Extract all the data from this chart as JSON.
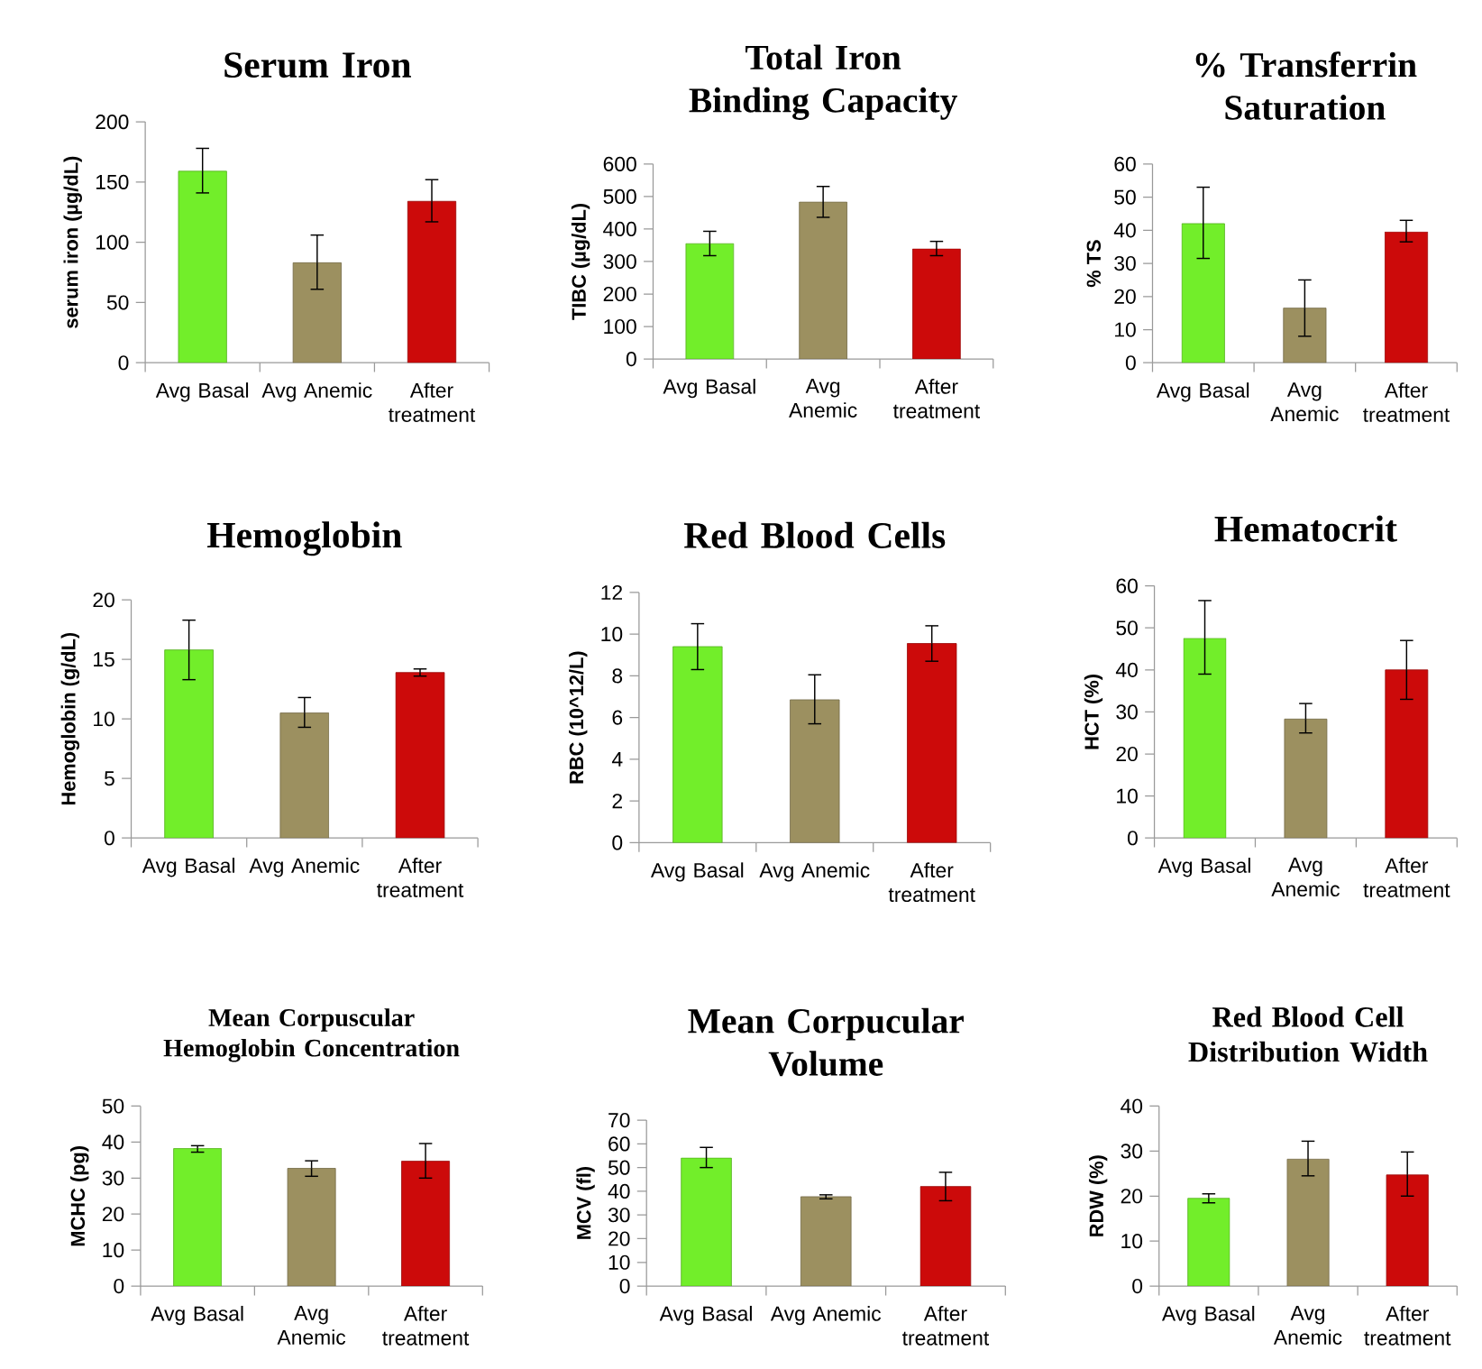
{
  "chart_data": [
    {
      "type": "bar",
      "title": "Serum Iron",
      "ylabel": "serum iron (µg/dL)",
      "categories": [
        "Avg Basal",
        "Avg Anemic",
        "After treatment"
      ],
      "values": [
        159,
        83,
        134
      ],
      "errors": [
        [
          141,
          178
        ],
        [
          61,
          106
        ],
        [
          117,
          152
        ]
      ],
      "colors": [
        "#72ee2a",
        "#9c9060",
        "#cc0a0a"
      ],
      "ylim": [
        0,
        200
      ],
      "yticks": [
        0,
        50,
        100,
        150,
        200
      ]
    },
    {
      "type": "bar",
      "title": "Total Iron Binding Capacity",
      "ylabel": "TIBC (µg/dL)",
      "categories": [
        "Avg Basal",
        "Avg Anemic",
        "After treatment"
      ],
      "values": [
        355,
        483,
        339
      ],
      "errors": [
        [
          318,
          393
        ],
        [
          436,
          531
        ],
        [
          318,
          362
        ]
      ],
      "colors": [
        "#72ee2a",
        "#9c9060",
        "#cc0a0a"
      ],
      "ylim": [
        0,
        600
      ],
      "yticks": [
        0,
        100,
        200,
        300,
        400,
        500,
        600
      ]
    },
    {
      "type": "bar",
      "title": "% Transferrin Saturation",
      "ylabel": "% TS",
      "categories": [
        "Avg Basal",
        "Avg Anemic",
        "After treatment"
      ],
      "values": [
        42,
        16.5,
        39.5
      ],
      "errors": [
        [
          31.5,
          53
        ],
        [
          8,
          25
        ],
        [
          36.5,
          43
        ]
      ],
      "colors": [
        "#72ee2a",
        "#9c9060",
        "#cc0a0a"
      ],
      "ylim": [
        0,
        60
      ],
      "yticks": [
        0,
        10,
        20,
        30,
        40,
        50,
        60
      ]
    },
    {
      "type": "bar",
      "title": "Hemoglobin",
      "ylabel": "Hemoglobin (g/dL)",
      "categories": [
        "Avg Basal",
        "Avg Anemic",
        "After treatment"
      ],
      "values": [
        15.8,
        10.5,
        13.9
      ],
      "errors": [
        [
          13.3,
          18.3
        ],
        [
          9.3,
          11.8
        ],
        [
          13.6,
          14.2
        ]
      ],
      "colors": [
        "#72ee2a",
        "#9c9060",
        "#cc0a0a"
      ],
      "ylim": [
        0,
        20
      ],
      "yticks": [
        0,
        5,
        10,
        15,
        20
      ]
    },
    {
      "type": "bar",
      "title": "Red Blood Cells",
      "ylabel": "RBC (10^12/L)",
      "categories": [
        "Avg Basal",
        "Avg Anemic",
        "After treatment"
      ],
      "values": [
        9.4,
        6.85,
        9.55
      ],
      "errors": [
        [
          8.3,
          10.5
        ],
        [
          5.7,
          8.05
        ],
        [
          8.7,
          10.4
        ]
      ],
      "colors": [
        "#72ee2a",
        "#9c9060",
        "#cc0a0a"
      ],
      "ylim": [
        0,
        12
      ],
      "yticks": [
        0,
        2,
        4,
        6,
        8,
        10,
        12
      ]
    },
    {
      "type": "bar",
      "title": "Hematocrit",
      "ylabel": "HCT (%)",
      "categories": [
        "Avg Basal",
        "Avg Anemic",
        "After treatment"
      ],
      "values": [
        47.5,
        28.3,
        40
      ],
      "errors": [
        [
          39,
          56.5
        ],
        [
          25,
          32
        ],
        [
          33,
          47
        ]
      ],
      "colors": [
        "#72ee2a",
        "#9c9060",
        "#cc0a0a"
      ],
      "ylim": [
        0,
        60
      ],
      "yticks": [
        0,
        10,
        20,
        30,
        40,
        50,
        60
      ]
    },
    {
      "type": "bar",
      "title": "Mean Corpuscular Hemoglobin Concentration",
      "ylabel": "MCHC (pg)",
      "categories": [
        "Avg Basal",
        "Avg Anemic",
        "After treatment"
      ],
      "values": [
        38.2,
        32.7,
        34.7
      ],
      "errors": [
        [
          37.2,
          39
        ],
        [
          30.5,
          34.8
        ],
        [
          30,
          39.6
        ]
      ],
      "colors": [
        "#72ee2a",
        "#9c9060",
        "#cc0a0a"
      ],
      "ylim": [
        0,
        50
      ],
      "yticks": [
        0,
        10,
        20,
        30,
        40,
        50
      ]
    },
    {
      "type": "bar",
      "title": "Mean Corpucular Volume",
      "ylabel": "MCV (fl)",
      "categories": [
        "Avg Basal",
        "Avg Anemic",
        "After treatment"
      ],
      "values": [
        54,
        37.7,
        42
      ],
      "errors": [
        [
          50,
          58.5
        ],
        [
          36.8,
          38.5
        ],
        [
          36,
          48
        ]
      ],
      "colors": [
        "#72ee2a",
        "#9c9060",
        "#cc0a0a"
      ],
      "ylim": [
        0,
        70
      ],
      "yticks": [
        0,
        10,
        20,
        30,
        40,
        50,
        60,
        70
      ]
    },
    {
      "type": "bar",
      "title": "Red Blood Cell Distribution Width",
      "ylabel": "RDW (%)",
      "categories": [
        "Avg Basal",
        "Avg Anemic",
        "After treatment"
      ],
      "values": [
        19.5,
        28.2,
        24.7
      ],
      "errors": [
        [
          18.5,
          20.5
        ],
        [
          24.5,
          32.2
        ],
        [
          20,
          29.8
        ]
      ],
      "colors": [
        "#72ee2a",
        "#9c9060",
        "#cc0a0a"
      ],
      "ylim": [
        0,
        40
      ],
      "yticks": [
        0,
        10,
        20,
        30,
        40
      ]
    }
  ]
}
